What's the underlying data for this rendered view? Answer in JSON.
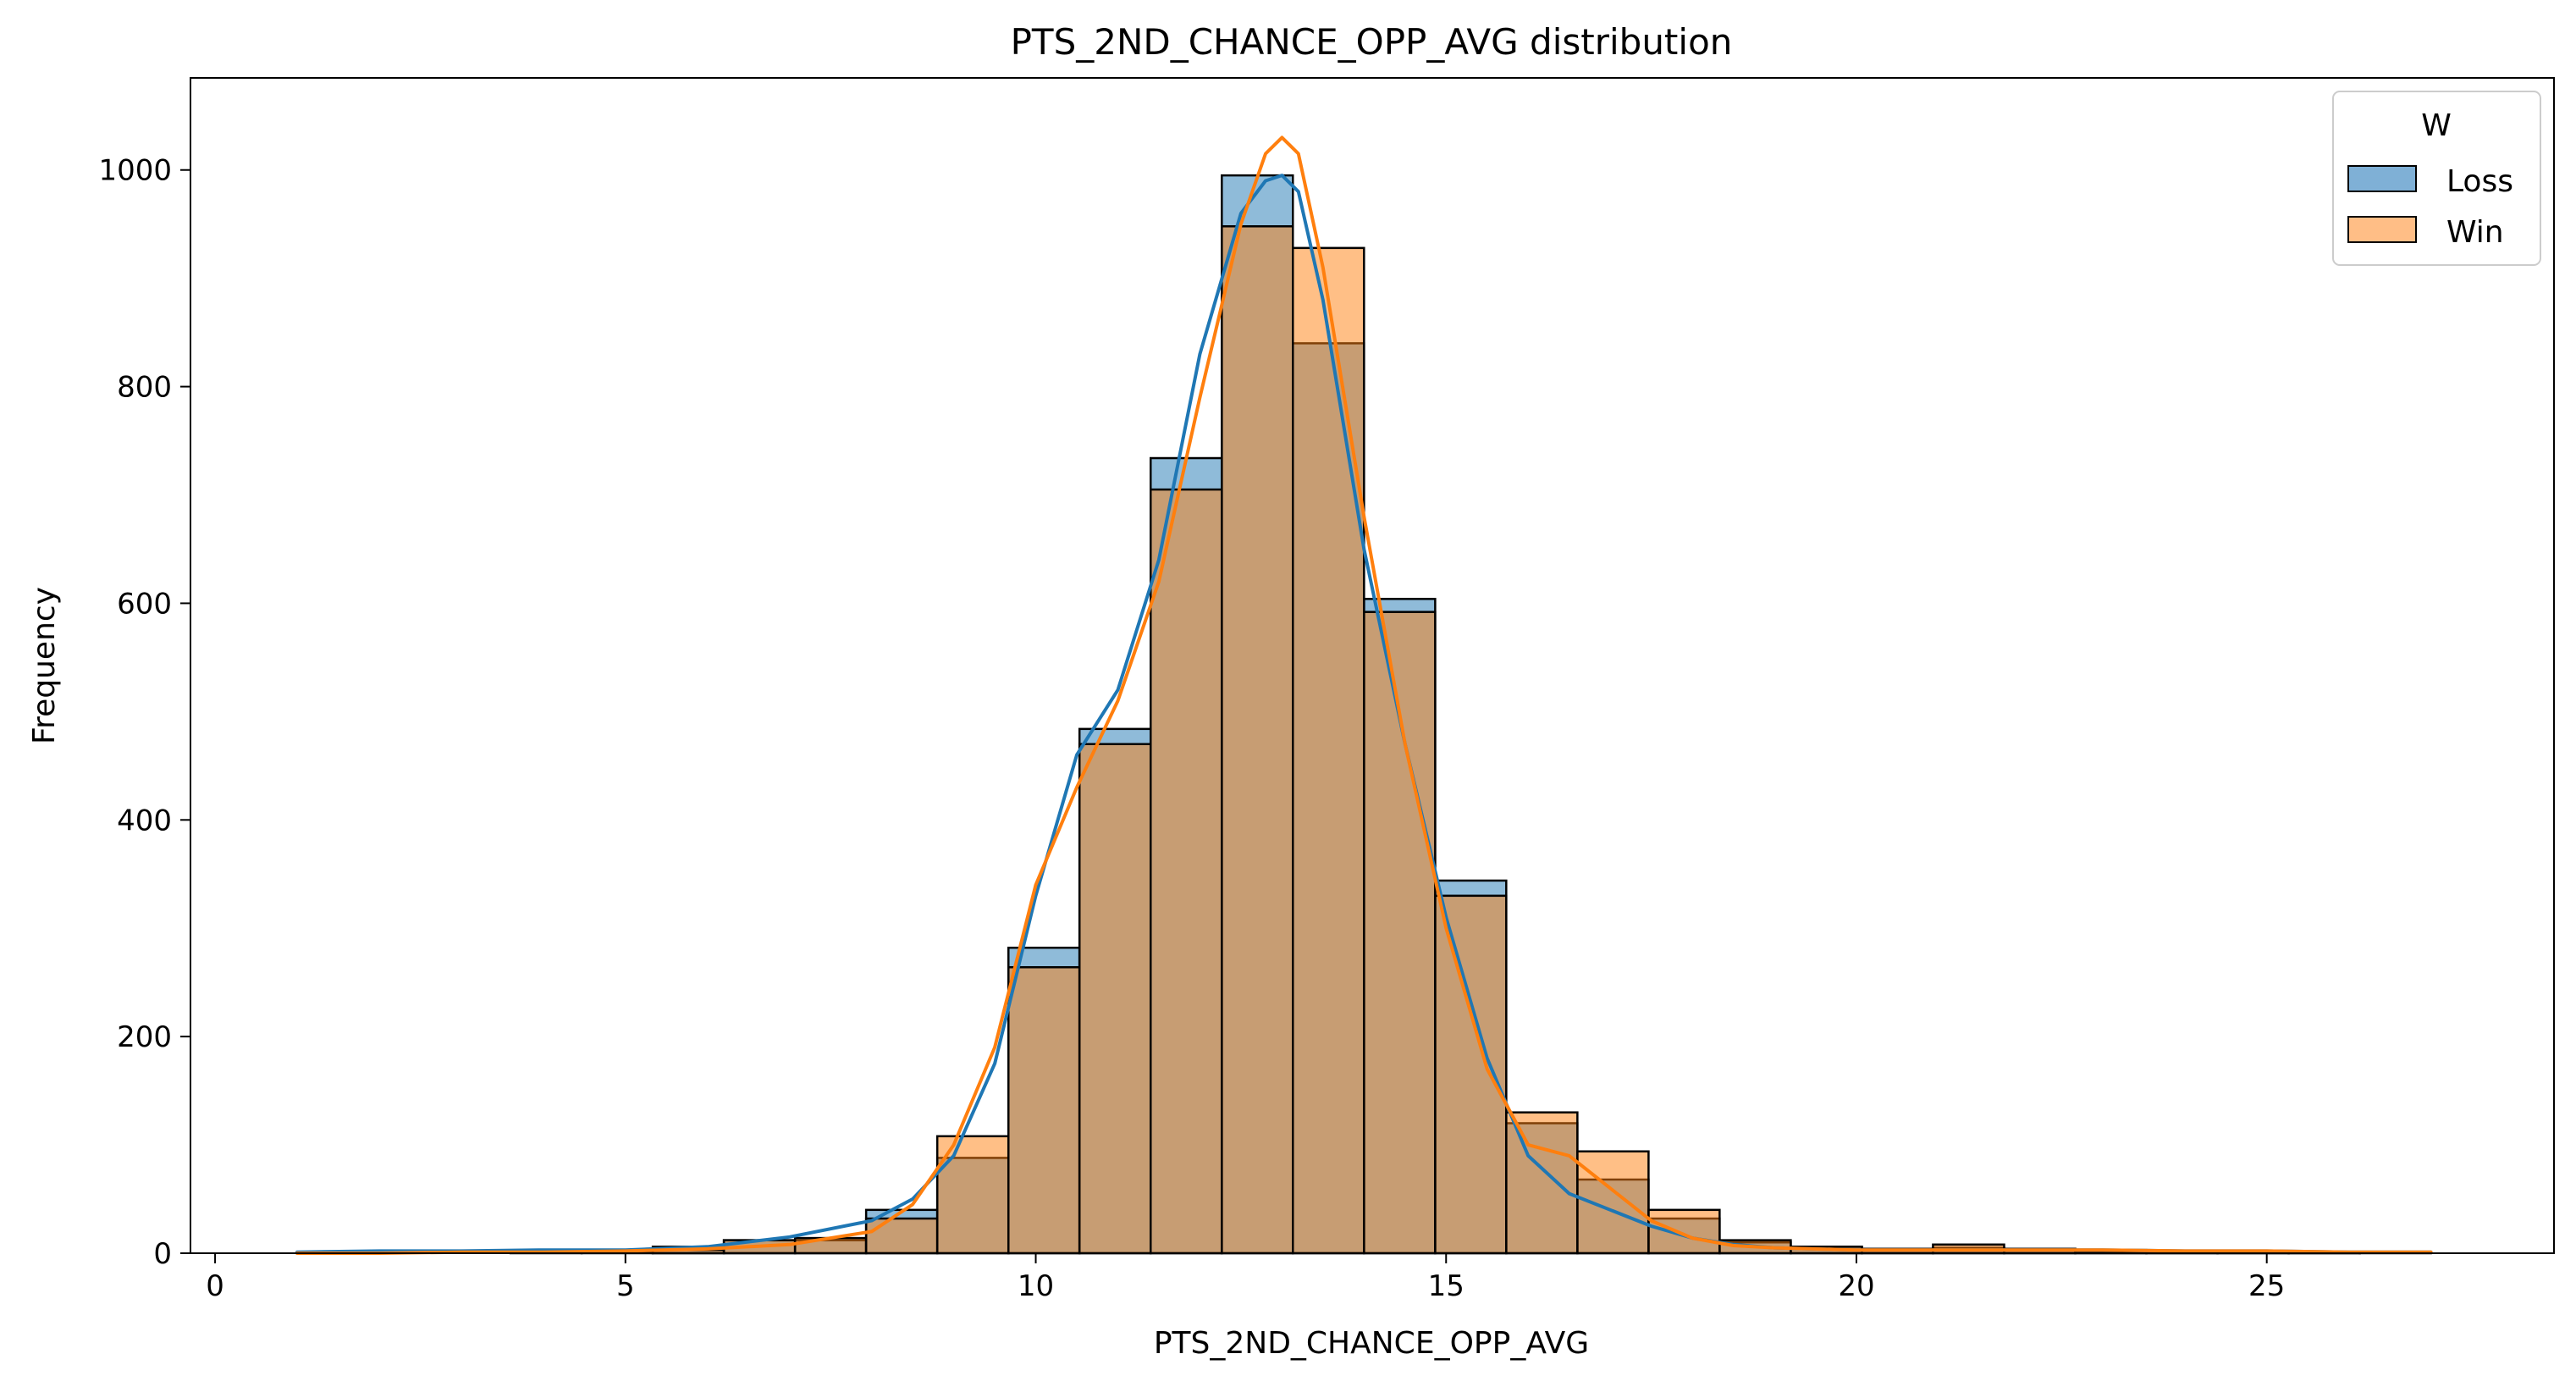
{
  "chart_data": {
    "type": "bar",
    "title": "PTS_2ND_CHANCE_OPP_AVG distribution",
    "xlabel": "PTS_2ND_CHANCE_OPP_AVG",
    "ylabel": "Frequency",
    "xlim": [
      -0.3,
      28.5
    ],
    "ylim": [
      0,
      1085
    ],
    "xticks": [
      0,
      5,
      10,
      15,
      20,
      25
    ],
    "yticks": [
      0,
      200,
      400,
      600,
      800,
      1000
    ],
    "legend": {
      "title": "W",
      "position": "top-right"
    },
    "bin_edges": [
      1.0,
      1.867,
      2.733,
      3.6,
      4.467,
      5.333,
      6.2,
      7.067,
      7.933,
      8.8,
      9.667,
      10.533,
      11.4,
      12.267,
      13.133,
      14.0,
      14.867,
      15.733,
      16.6,
      17.467,
      18.333,
      19.2,
      20.067,
      20.933,
      21.8,
      22.667,
      23.533,
      24.4,
      25.267,
      26.133,
      27.0
    ],
    "series": [
      {
        "name": "Loss",
        "color": "#1f77b4",
        "fill": "#7fb0d6",
        "values": [
          1,
          0,
          0,
          2,
          2,
          6,
          12,
          12,
          40,
          88,
          282,
          484,
          734,
          995,
          840,
          604,
          344,
          120,
          68,
          32,
          10,
          6,
          4,
          5,
          4,
          3,
          1,
          1,
          1,
          0
        ],
        "kde_x": [
          1,
          2,
          3,
          4,
          5,
          6,
          7,
          8,
          8.5,
          9,
          9.5,
          10,
          10.5,
          11,
          11.5,
          12,
          12.5,
          12.8,
          13.0,
          13.2,
          13.5,
          14,
          14.5,
          15,
          15.5,
          16,
          16.5,
          17,
          17.5,
          18,
          18.5,
          19,
          20,
          21,
          22,
          23,
          24,
          25,
          26,
          27
        ],
        "kde_y": [
          1,
          2,
          2,
          3,
          3,
          6,
          15,
          30,
          50,
          90,
          175,
          330,
          460,
          520,
          640,
          830,
          960,
          990,
          995,
          980,
          880,
          650,
          470,
          310,
          180,
          90,
          55,
          40,
          25,
          14,
          8,
          5,
          3,
          3,
          3,
          3,
          2,
          2,
          1,
          1
        ]
      },
      {
        "name": "Win",
        "color": "#ff7f0e",
        "fill": "#ffbe86",
        "values": [
          0,
          0,
          0,
          0,
          0,
          3,
          12,
          14,
          32,
          108,
          264,
          470,
          705,
          948,
          928,
          592,
          330,
          130,
          94,
          40,
          12,
          6,
          4,
          8,
          4,
          2,
          1,
          1,
          1,
          1
        ],
        "kde_x": [
          1,
          2,
          3,
          4,
          5,
          6,
          7,
          8,
          8.5,
          9,
          9.5,
          10,
          10.5,
          11,
          11.5,
          12,
          12.5,
          12.8,
          13.0,
          13.2,
          13.5,
          14,
          14.5,
          15,
          15.5,
          16,
          16.5,
          17,
          17.5,
          18,
          18.5,
          19,
          20,
          21,
          22,
          23,
          24,
          25,
          26,
          27
        ],
        "kde_y": [
          0,
          0,
          1,
          1,
          2,
          4,
          8,
          20,
          45,
          100,
          190,
          340,
          430,
          510,
          620,
          790,
          950,
          1015,
          1030,
          1015,
          910,
          680,
          470,
          300,
          170,
          100,
          90,
          60,
          30,
          14,
          7,
          5,
          3,
          3,
          3,
          3,
          2,
          2,
          1,
          1
        ]
      }
    ]
  }
}
